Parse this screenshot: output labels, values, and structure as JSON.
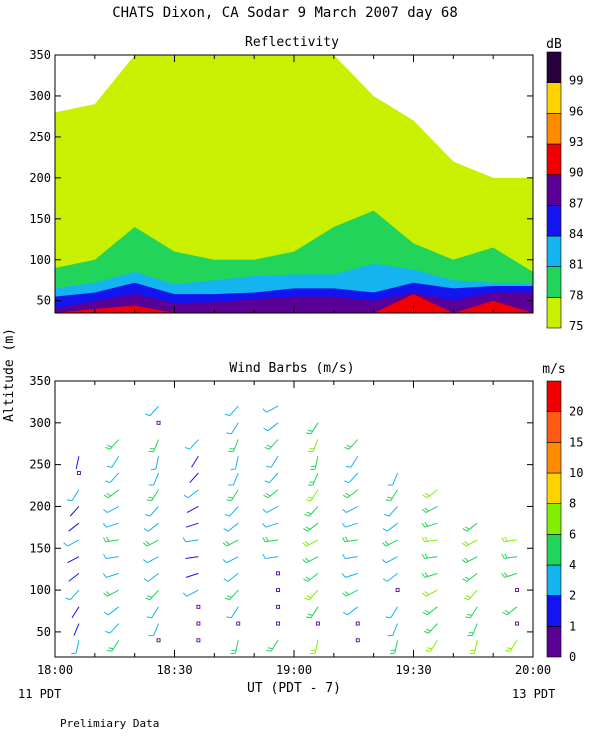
{
  "header": {
    "title": "CHATS Dixon, CA  Sodar   9 March 2007  day  68",
    "y_axis_label": "Altitude (m)",
    "x_axis_label": "UT  (PDT - 7)",
    "x_left_note": "11 PDT",
    "x_right_note": "13 PDT",
    "footer_note": "Prelimiary Data"
  },
  "chart_data": [
    {
      "type": "heatmap",
      "title": "Reflectivity",
      "xlabel": "UT  (PDT - 7)",
      "ylabel": "Altitude (m)",
      "x_ticks": [
        "18:00",
        "18:30",
        "19:00",
        "19:30",
        "20:00"
      ],
      "x_tick_values": [
        0,
        30,
        60,
        90,
        120
      ],
      "xlim": [
        0,
        120
      ],
      "ylim": [
        35,
        350
      ],
      "y_ticks": [
        50,
        100,
        150,
        200,
        250,
        300,
        350
      ],
      "colorbar": {
        "unit": "dB",
        "levels": [
          75,
          78,
          81,
          84,
          87,
          90,
          93,
          96,
          99
        ],
        "colors": [
          "#c8f000",
          "#22d45a",
          "#14b4f0",
          "#1414f0",
          "#5a0096",
          "#f00000",
          "#ff8c00",
          "#ffd200",
          "#28003c"
        ]
      },
      "x": [
        0,
        10,
        20,
        30,
        40,
        50,
        60,
        70,
        80,
        90,
        100,
        110,
        120
      ],
      "contour_bands": [
        {
          "level": 75,
          "top": [
            280,
            290,
            350,
            350,
            350,
            350,
            350,
            350,
            300,
            270,
            220,
            200,
            200
          ]
        },
        {
          "level": 78,
          "top": [
            90,
            100,
            140,
            110,
            100,
            100,
            110,
            140,
            160,
            120,
            100,
            115,
            85
          ]
        },
        {
          "level": 81,
          "top": [
            65,
            72,
            85,
            70,
            75,
            80,
            82,
            82,
            95,
            88,
            75,
            72,
            70
          ]
        },
        {
          "level": 84,
          "top": [
            55,
            60,
            72,
            58,
            58,
            60,
            65,
            65,
            60,
            72,
            65,
            68,
            68
          ]
        },
        {
          "level": 87,
          "top": [
            40,
            50,
            58,
            47,
            48,
            52,
            55,
            55,
            50,
            60,
            50,
            60,
            60
          ]
        },
        {
          "level": 90,
          "top": [
            35,
            40,
            44,
            35,
            35,
            35,
            35,
            35,
            35,
            58,
            35,
            50,
            35
          ]
        }
      ]
    },
    {
      "type": "scatter",
      "title": "Wind Barbs (m/s)",
      "xlabel": "UT  (PDT - 7)",
      "ylabel": "Altitude (m)",
      "x_ticks": [
        "18:00",
        "18:30",
        "19:00",
        "19:30",
        "20:00"
      ],
      "x_tick_values": [
        0,
        30,
        60,
        90,
        120
      ],
      "xlim": [
        0,
        120
      ],
      "ylim": [
        20,
        350
      ],
      "y_ticks": [
        50,
        100,
        150,
        200,
        250,
        300,
        350
      ],
      "colorbar": {
        "unit": "m/s",
        "levels": [
          0,
          1,
          2,
          4,
          6,
          8,
          10,
          15,
          20
        ],
        "colors": [
          "#5a0096",
          "#1414f0",
          "#14b4f0",
          "#22d45a",
          "#80f000",
          "#ffd200",
          "#ff8c00",
          "#ff5a14",
          "#f00000"
        ]
      },
      "times": [
        6,
        16,
        26,
        36,
        46,
        56,
        66,
        76,
        86,
        96,
        106,
        116
      ],
      "altitudes": [
        40,
        60,
        80,
        100,
        120,
        140,
        160,
        180,
        200,
        220,
        240,
        260,
        280,
        300,
        320
      ],
      "max_altitude_per_time": [
        260,
        280,
        320,
        280,
        320,
        320,
        300,
        290,
        240,
        220,
        180,
        160
      ],
      "calm_points": [
        [
          26,
          40
        ],
        [
          36,
          40
        ],
        [
          36,
          60
        ],
        [
          36,
          80
        ],
        [
          46,
          60
        ],
        [
          56,
          60
        ],
        [
          56,
          80
        ],
        [
          56,
          100
        ],
        [
          56,
          120
        ],
        [
          66,
          60
        ],
        [
          76,
          40
        ],
        [
          76,
          60
        ],
        [
          86,
          100
        ],
        [
          6,
          240
        ],
        [
          26,
          300
        ],
        [
          116,
          100
        ],
        [
          116,
          60
        ]
      ],
      "speed_class_by_time": [
        1,
        2,
        2,
        1,
        2,
        2,
        3,
        2,
        2,
        3,
        3,
        3
      ],
      "direction_deg_by_altitude": [
        200,
        210,
        220,
        230,
        240,
        250,
        250,
        240,
        230,
        220,
        210,
        200,
        210,
        220,
        230
      ]
    }
  ]
}
